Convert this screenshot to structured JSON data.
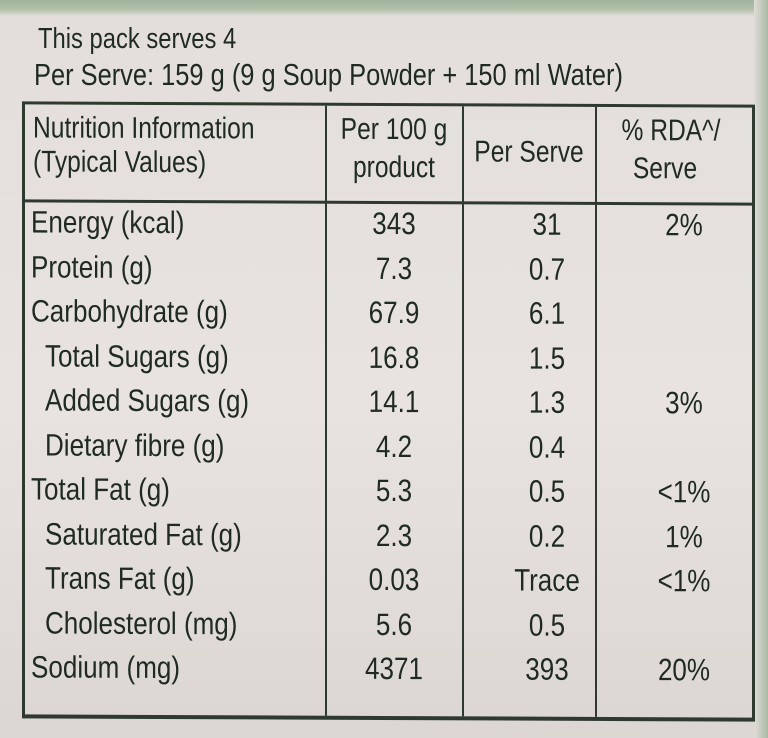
{
  "intro": {
    "serves": "This pack serves 4",
    "per_serve": "Per Serve: 159 g (9 g Soup Powder + 150 ml Water)"
  },
  "table": {
    "headers": {
      "c0_line1": "Nutrition Information",
      "c0_line2": "(Typical Values)",
      "c1_line1": "Per 100 g",
      "c1_line2": "product",
      "c2": "Per Serve",
      "c3_line1": "% RDA^/",
      "c3_line2": "Serve"
    },
    "rows": [
      {
        "name": "Energy (kcal)",
        "per100": "343",
        "serve": "31",
        "rda": "2%",
        "indent": false
      },
      {
        "name": "Protein (g)",
        "per100": "7.3",
        "serve": "0.7",
        "rda": "",
        "indent": false
      },
      {
        "name": "Carbohydrate (g)",
        "per100": "67.9",
        "serve": "6.1",
        "rda": "",
        "indent": false
      },
      {
        "name": "Total Sugars (g)",
        "per100": "16.8",
        "serve": "1.5",
        "rda": "",
        "indent": true
      },
      {
        "name": "Added Sugars (g)",
        "per100": "14.1",
        "serve": "1.3",
        "rda": "3%",
        "indent": true
      },
      {
        "name": "Dietary fibre (g)",
        "per100": "4.2",
        "serve": "0.4",
        "rda": "",
        "indent": true
      },
      {
        "name": "Total Fat (g)",
        "per100": "5.3",
        "serve": "0.5",
        "rda": "<1%",
        "indent": false
      },
      {
        "name": "Saturated Fat (g)",
        "per100": "2.3",
        "serve": "0.2",
        "rda": "1%",
        "indent": true
      },
      {
        "name": "Trans Fat (g)",
        "per100": "0.03",
        "serve": "Trace",
        "rda": "<1%",
        "indent": true
      },
      {
        "name": "Cholesterol (mg)",
        "per100": "5.6",
        "serve": "0.5",
        "rda": "",
        "indent": true
      },
      {
        "name": "Sodium (mg)",
        "per100": "4371",
        "serve": "393",
        "rda": "20%",
        "indent": false
      }
    ]
  },
  "colors": {
    "ink": "#1e2a22",
    "background": "#e6e1de",
    "package_green": "#a9b9a5"
  }
}
